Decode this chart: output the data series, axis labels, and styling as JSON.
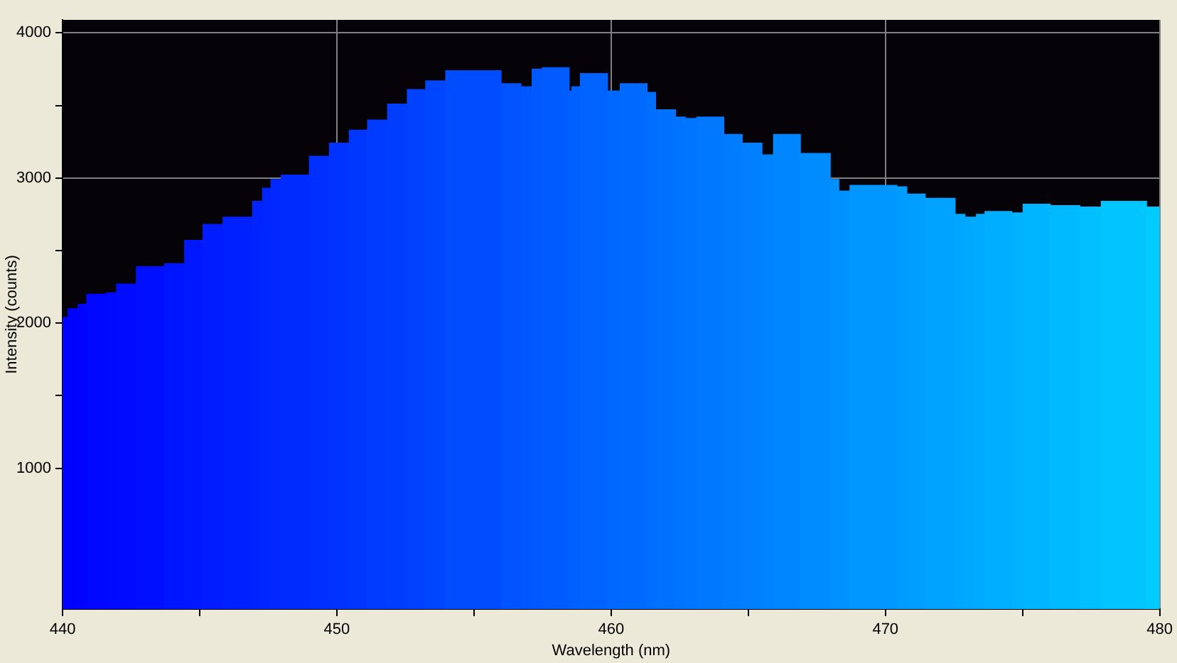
{
  "chart_data": {
    "type": "histogram",
    "xlabel": "Wavelength (nm)",
    "ylabel": "Intensity (counts)",
    "bins": [
      440.0,
      440.2,
      440.57,
      440.88,
      441.6,
      441.97,
      442.69,
      443.72,
      444.45,
      445.12,
      445.85,
      446.93,
      447.29,
      447.6,
      447.97,
      449.0,
      449.73,
      450.45,
      451.12,
      451.85,
      452.57,
      453.24,
      453.97,
      455.99,
      456.71,
      457.12,
      457.49,
      458.47,
      458.57,
      458.88,
      459.87,
      460.33,
      461.31,
      461.62,
      462.35,
      462.71,
      463.12,
      464.11,
      464.78,
      465.5,
      465.92,
      466.9,
      467.99,
      468.3,
      468.71,
      470.42,
      470.78,
      471.45,
      472.54,
      472.9,
      473.32,
      473.63,
      474.61,
      475.02,
      476.01,
      477.09,
      477.87,
      479.52,
      480.0
    ],
    "values": [
      2040,
      2100,
      2130,
      2200,
      2210,
      2270,
      2390,
      2410,
      2570,
      2680,
      2730,
      2840,
      2930,
      2990,
      3020,
      3150,
      3240,
      3330,
      3400,
      3510,
      3610,
      3670,
      3740,
      3650,
      3630,
      3750,
      3760,
      3600,
      3630,
      3720,
      3600,
      3650,
      3590,
      3470,
      3420,
      3410,
      3420,
      3300,
      3240,
      3160,
      3300,
      3170,
      2990,
      2910,
      2950,
      2940,
      2890,
      2860,
      2750,
      2730,
      2750,
      2770,
      2760,
      2820,
      2810,
      2800,
      2840,
      2800
    ],
    "colors": [
      "#0001ff",
      "#0002ff",
      "#0004ff",
      "#0006ff",
      "#0009ff",
      "#000cff",
      "#0010ff",
      "#0015ff",
      "#0018ff",
      "#001cff",
      "#0021ff",
      "#0024ff",
      "#0026ff",
      "#0028ff",
      "#002bff",
      "#0030ff",
      "#0033ff",
      "#0037ff",
      "#003bff",
      "#003eff",
      "#0042ff",
      "#0045ff",
      "#004cff",
      "#0053ff",
      "#0056ff",
      "#0058ff",
      "#005cff",
      "#005eff",
      "#005fff",
      "#0063ff",
      "#0067ff",
      "#006aff",
      "#006eff",
      "#0070ff",
      "#0073ff",
      "#0075ff",
      "#0078ff",
      "#007dff",
      "#0080ff",
      "#0083ff",
      "#0087ff",
      "#008cff",
      "#0090ff",
      "#0092ff",
      "#0097ff",
      "#009cff",
      "#009fff",
      "#00a3ff",
      "#00a7ff",
      "#00a9ff",
      "#00abff",
      "#00aeff",
      "#00b2ff",
      "#00b5ff",
      "#00baff",
      "#00bfff",
      "#00c5ff",
      "#00cbff"
    ],
    "xlim": [
      440,
      480
    ],
    "xticks": [
      440,
      {
        "value": 445,
        "label": null
      },
      450,
      {
        "value": 455,
        "label": null
      },
      460,
      {
        "value": 465,
        "label": null
      },
      470,
      {
        "value": 475,
        "label": null
      },
      480
    ],
    "ylim": [
      30,
      4090
    ],
    "yticks": [
      1000,
      {
        "value": 1500,
        "label": null
      },
      2000,
      {
        "value": 2500,
        "label": null
      },
      3000,
      {
        "value": 3500,
        "label": null
      },
      4000
    ],
    "grid": true,
    "legend": false
  }
}
